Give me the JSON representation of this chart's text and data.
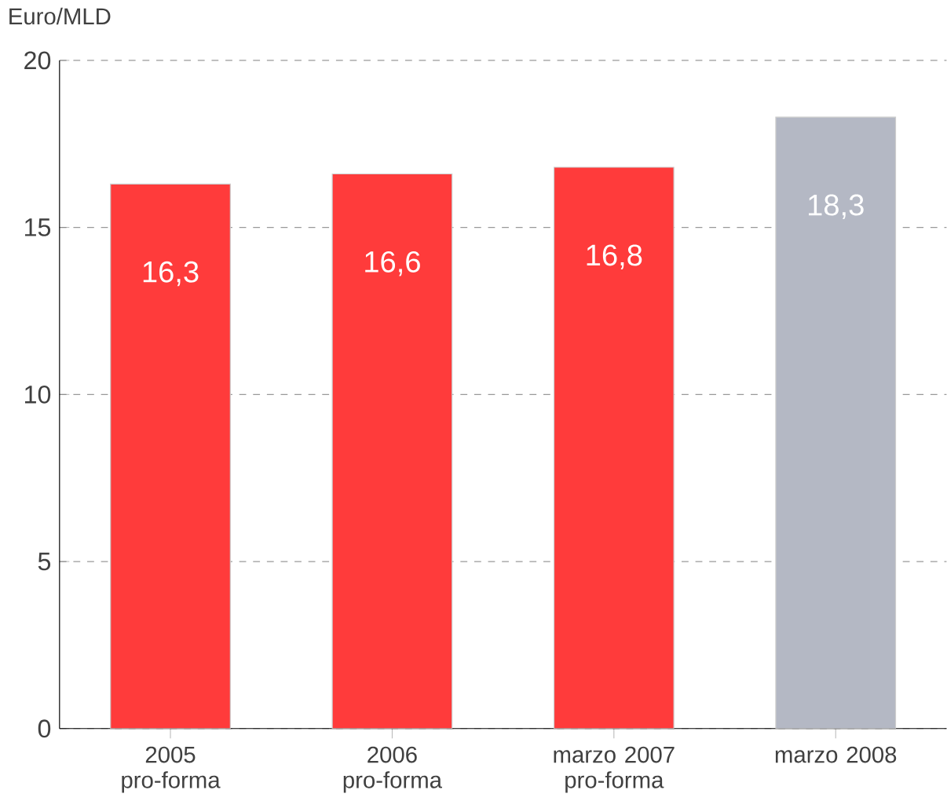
{
  "chart_data": {
    "type": "bar",
    "ylabel": "Euro/MLD",
    "categories": [
      "2005 pro-forma",
      "2006 pro-forma",
      "marzo 2007 pro-forma",
      "marzo 2008"
    ],
    "values": [
      16.3,
      16.6,
      16.8,
      18.3
    ],
    "value_labels": [
      "16,3",
      "16,6",
      "16,8",
      "18,3"
    ],
    "colors": [
      "#ff3b3b",
      "#ff3b3b",
      "#ff3b3b",
      "#b4b8c4"
    ],
    "ylim": [
      0,
      20
    ],
    "yticks": [
      0,
      5,
      10,
      15,
      20
    ],
    "grid": "y"
  }
}
